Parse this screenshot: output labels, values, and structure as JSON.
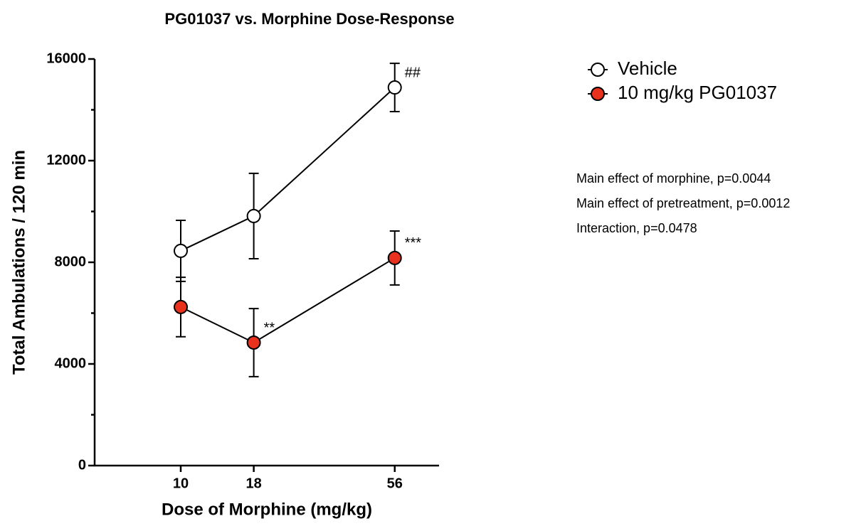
{
  "chart_data": {
    "type": "line",
    "title": "PG01037 vs. Morphine Dose-Response",
    "xlabel": "Dose of Morphine (mg/kg)",
    "ylabel": "Total Ambulations / 120 min",
    "x": [
      10,
      18,
      56
    ],
    "xscale": "log",
    "xlim": [
      5,
      80
    ],
    "xticks": [
      10,
      18,
      56
    ],
    "ylim": [
      0,
      16000
    ],
    "yticks": [
      0,
      4000,
      8000,
      12000,
      16000
    ],
    "yminorticks": [
      2000,
      6000,
      10000,
      14000
    ],
    "legend": "right",
    "series": [
      {
        "name": "Vehicle",
        "color": "#ffffff",
        "values": [
          8450,
          9820,
          14880
        ],
        "errors": [
          1200,
          1680,
          950
        ],
        "point_labels": [
          null,
          null,
          "##"
        ]
      },
      {
        "name": "10 mg/kg PG01037",
        "color": "#e8321e",
        "values": [
          6240,
          4840,
          8170
        ],
        "errors": [
          1170,
          1340,
          1060
        ],
        "point_labels": [
          null,
          "**",
          "***"
        ]
      }
    ],
    "notes": [
      "Main effect of morphine, p=0.0044",
      "Main effect of pretreatment, p=0.0012",
      "Interaction, p=0.0478"
    ]
  }
}
